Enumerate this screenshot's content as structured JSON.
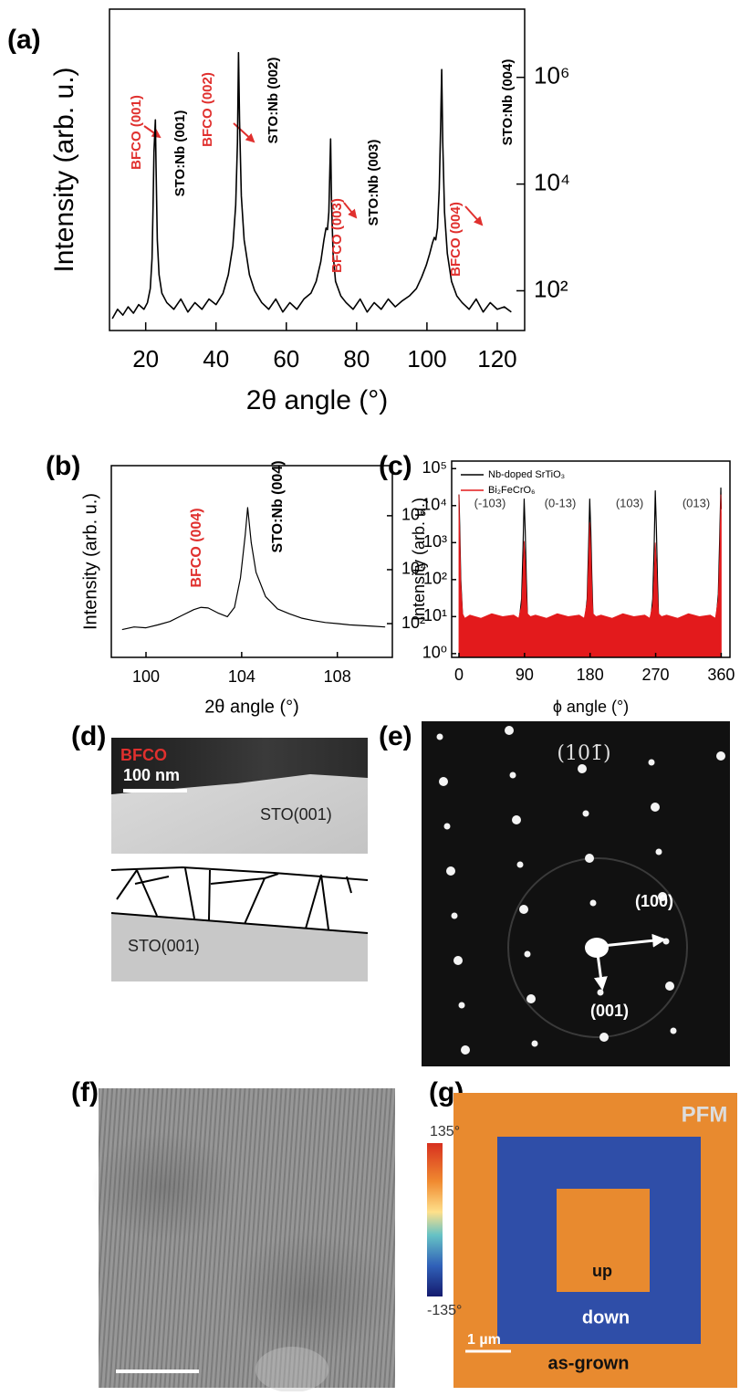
{
  "panel_labels": [
    "(a)",
    "(b)",
    "(c)",
    "(d)",
    "(e)",
    "(f)",
    "(g)"
  ],
  "chart_data": [
    {
      "type": "line",
      "xlabel": "2θ angle (°)",
      "ylabel": "Intensity (arb. u.)",
      "log_y": true,
      "y_axis_side": "right",
      "color": "#000000",
      "xlim": [
        9.7,
        127.8
      ],
      "ylim": [
        18,
        19000000
      ],
      "xticks": [
        20,
        40,
        60,
        80,
        100,
        120
      ],
      "yticks": [
        {
          "value": 100,
          "label": "10²"
        },
        {
          "value": 10000,
          "label": "10⁴"
        },
        {
          "value": 1000000,
          "label": "10⁶"
        }
      ],
      "x": [
        10.5,
        12,
        13.5,
        15,
        16.5,
        18,
        19.5,
        20.5,
        21.3,
        21.8,
        22.1,
        22.35,
        22.55,
        22.75,
        22.95,
        23.3,
        23.8,
        24.6,
        26,
        28,
        30,
        32,
        34,
        36,
        38,
        40,
        42,
        43.5,
        44.8,
        45.6,
        46.1,
        46.4,
        46.7,
        47.2,
        48,
        49.5,
        51,
        53,
        55,
        57,
        59,
        61,
        63,
        65,
        67,
        68.5,
        69.8,
        70.7,
        71.3,
        71.7,
        72.1,
        72.4,
        72.6,
        72.85,
        73.3,
        74,
        75.5,
        77,
        79,
        81,
        83,
        85,
        87,
        89,
        91,
        93,
        95,
        97,
        98.5,
        99.8,
        100.8,
        101.6,
        102.1,
        102.5,
        103,
        103.5,
        103.9,
        104.2,
        104.5,
        105,
        105.8,
        107,
        108.5,
        110,
        112,
        114,
        116,
        118,
        120,
        122,
        124
      ],
      "values": [
        30,
        45,
        35,
        50,
        38,
        55,
        45,
        60,
        110,
        400,
        4000,
        40000,
        80000,
        160000,
        20000,
        900,
        200,
        90,
        60,
        45,
        70,
        40,
        60,
        45,
        70,
        55,
        90,
        200,
        700,
        4000,
        60000,
        2900000,
        150000,
        6000,
        900,
        200,
        100,
        60,
        45,
        70,
        40,
        60,
        45,
        70,
        90,
        150,
        350,
        900,
        1500,
        1400,
        3000,
        20000,
        70000,
        5000,
        500,
        150,
        80,
        60,
        45,
        70,
        40,
        60,
        45,
        70,
        50,
        65,
        80,
        110,
        180,
        300,
        500,
        800,
        1000,
        900,
        1500,
        8000,
        120000,
        1400000,
        60000,
        3000,
        500,
        150,
        80,
        60,
        45,
        70,
        40,
        60,
        45,
        50,
        40
      ],
      "annotations": [
        {
          "text": "BFCO (001)",
          "color": "#e0302e"
        },
        {
          "text": "STO:Nb (001)",
          "color": "#000000"
        },
        {
          "text": "BFCO (002)",
          "color": "#e0302e"
        },
        {
          "text": "STO:Nb (002)",
          "color": "#000000"
        },
        {
          "text": "BFCO (003)",
          "color": "#e0302e"
        },
        {
          "text": "STO:Nb (003)",
          "color": "#000000"
        },
        {
          "text": "BFCO (004)",
          "color": "#e0302e"
        },
        {
          "text": "STO:Nb (004)",
          "color": "#000000"
        }
      ]
    },
    {
      "type": "line",
      "xlabel": "2θ angle (°)",
      "ylabel": "Intensity (arb. u.)",
      "log_y": true,
      "y_axis_side": "right",
      "color": "#000000",
      "xlim": [
        98.55,
        110.3
      ],
      "ylim": [
        5.6,
        72000000
      ],
      "xticks": [
        100,
        104,
        108
      ],
      "yticks": [
        {
          "value": 100,
          "label": "10²"
        },
        {
          "value": 10000,
          "label": "10⁴"
        },
        {
          "value": 1000000,
          "label": "10⁶"
        }
      ],
      "x": [
        99,
        99.5,
        100,
        100.5,
        101,
        101.5,
        102,
        102.3,
        102.6,
        103,
        103.4,
        103.7,
        103.95,
        104.15,
        104.25,
        104.4,
        104.6,
        105,
        105.5,
        106,
        106.5,
        107,
        107.5,
        108,
        108.5,
        109,
        109.5,
        110
      ],
      "values": [
        60,
        75,
        70,
        90,
        120,
        200,
        330,
        400,
        380,
        250,
        180,
        400,
        5000,
        200000,
        2000000,
        100000,
        8000,
        1000,
        350,
        230,
        160,
        130,
        110,
        100,
        90,
        85,
        80,
        75
      ],
      "annotations": [
        {
          "text": "BFCO (004)",
          "color": "#e0302e"
        },
        {
          "text": "STO:Nb (004)",
          "color": "#000000"
        }
      ]
    },
    {
      "type": "line",
      "xlabel": "ϕ angle (°)",
      "ylabel": "Intensity (arb. u.)",
      "log_y": true,
      "y_axis_side": "left",
      "xlim": [
        -10,
        372
      ],
      "ylim": [
        0.79,
        160000
      ],
      "xticks": [
        0,
        90,
        180,
        270,
        360
      ],
      "yticks": [
        {
          "value": 1,
          "label": "10⁰"
        },
        {
          "value": 10,
          "label": "10¹"
        },
        {
          "value": 100,
          "label": "10²"
        },
        {
          "value": 1000,
          "label": "10³"
        },
        {
          "value": 10000,
          "label": "10⁴"
        },
        {
          "value": 100000,
          "label": "10⁵"
        }
      ],
      "x": [
        0,
        1,
        2.5,
        5,
        8,
        15,
        30,
        45,
        60,
        75,
        82,
        86,
        88,
        89.5,
        91,
        92.5,
        94,
        98,
        105,
        120,
        135,
        150,
        165,
        172,
        176,
        178,
        179.5,
        181,
        182.5,
        184,
        188,
        195,
        210,
        225,
        240,
        255,
        262,
        266,
        268,
        269.5,
        271,
        272.5,
        274,
        278,
        285,
        300,
        315,
        330,
        345,
        352,
        356,
        358,
        359.5,
        360
      ],
      "series": [
        {
          "name": "Nb-doped SrTiO₃",
          "color": "#000000",
          "fill": false,
          "values": [
            20000,
            3000,
            100,
            10,
            5,
            4,
            6,
            3,
            5,
            4,
            6,
            30,
            800,
            15000,
            2000,
            100,
            10,
            5,
            4,
            6,
            3,
            5,
            4,
            5,
            30,
            800,
            15000,
            2000,
            100,
            10,
            5,
            4,
            6,
            3,
            5,
            4,
            5,
            30,
            900,
            25000,
            2500,
            100,
            10,
            5,
            4,
            6,
            3,
            5,
            4,
            5,
            40,
            1500,
            30000,
            8000
          ]
        },
        {
          "name": "Bi₂FeCrO₆",
          "color": "#e31a1c",
          "fill": true,
          "values": [
            20000,
            2000,
            80,
            12,
            9,
            11,
            9,
            12,
            10,
            11,
            9,
            20,
            150,
            1100,
            300,
            40,
            12,
            10,
            11,
            9,
            12,
            10,
            11,
            9,
            25,
            300,
            3500,
            600,
            50,
            12,
            10,
            11,
            9,
            12,
            10,
            11,
            9,
            20,
            120,
            1000,
            250,
            40,
            12,
            10,
            11,
            9,
            12,
            10,
            11,
            9,
            30,
            500,
            20000,
            6000
          ]
        }
      ],
      "annotations": [
        {
          "text": "(-103)",
          "color": "#333333"
        },
        {
          "text": "(0-13)",
          "color": "#333333"
        },
        {
          "text": "(103)",
          "color": "#333333"
        },
        {
          "text": "(013)",
          "color": "#333333"
        }
      ]
    }
  ],
  "tem": {
    "layer": "BFCO",
    "scale_bar": "100 nm",
    "substrate": "STO(001)",
    "sketch_substrate": "STO(001)"
  },
  "diffraction": {
    "zone": "(101̄)",
    "spot_1": "(100)",
    "spot_2": "(001)"
  },
  "pfm": {
    "title": "PFM",
    "scale_max": "135°",
    "scale_min": "-135°",
    "regions": [
      "up",
      "down",
      "as-grown"
    ],
    "scale_bar": "1 µm"
  }
}
